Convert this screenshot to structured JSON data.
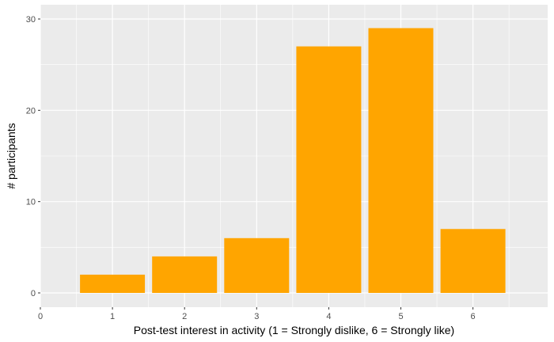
{
  "chart_data": {
    "type": "bar",
    "title": "",
    "xlabel": "Post-test interest in activity (1 = Strongly dislike, 6 = Strongly like)",
    "ylabel": "# participants",
    "categories": [
      1,
      2,
      3,
      4,
      5,
      6
    ],
    "values": [
      2,
      4,
      6,
      27,
      29,
      7
    ],
    "xlim": [
      0,
      7
    ],
    "ylim": [
      0,
      30
    ],
    "x_ticks": [
      0,
      1,
      2,
      3,
      4,
      5,
      6
    ],
    "y_ticks": [
      0,
      10,
      20,
      30
    ],
    "grid": true,
    "legend": "none",
    "colors": {
      "bar": "#FFA500",
      "panel_background": "#EBEBEB",
      "grid_line": "#FFFFFF"
    }
  }
}
